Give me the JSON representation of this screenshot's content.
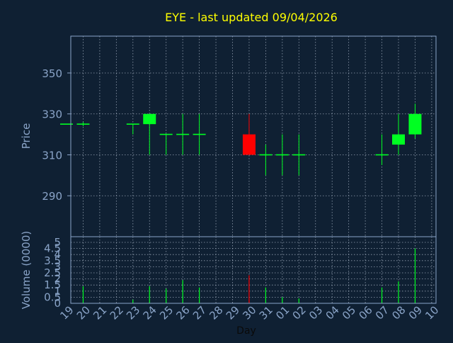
{
  "chart_data": {
    "type": "candlestick",
    "title": "EYE - last updated 09/04/2026",
    "xlabel": "Day",
    "colors": {
      "background": "#0f2033",
      "title": "#ffff00",
      "axis_text": "#8aa4c8",
      "frame": "#8aa4c8",
      "grid": "#c8d4e4",
      "up": "#00ff22",
      "down": "#ff0000",
      "neutral": "#00ff22"
    },
    "x_tick_labels": [
      "19",
      "20",
      "21",
      "22",
      "23",
      "24",
      "25",
      "26",
      "27",
      "28",
      "29",
      "30",
      "31",
      "01",
      "02",
      "03",
      "04",
      "05",
      "06",
      "07",
      "08",
      "09",
      "10"
    ],
    "price_panel": {
      "ylabel": "Price",
      "ylim": [
        270,
        368
      ],
      "yticks": [
        290,
        310,
        330,
        350
      ],
      "candles": [
        {
          "day": "19",
          "open": 325,
          "high": 325,
          "low": 325,
          "close": 325
        },
        {
          "day": "20",
          "open": 325,
          "high": 326,
          "low": 324,
          "close": 325
        },
        {
          "day": "23",
          "open": 325,
          "high": 325,
          "low": 320,
          "close": 325
        },
        {
          "day": "24",
          "open": 325,
          "high": 330,
          "low": 310,
          "close": 330
        },
        {
          "day": "25",
          "open": 320,
          "high": 320,
          "low": 310,
          "close": 320
        },
        {
          "day": "26",
          "open": 320,
          "high": 330,
          "low": 310,
          "close": 320
        },
        {
          "day": "27",
          "open": 320,
          "high": 330,
          "low": 310,
          "close": 320
        },
        {
          "day": "30",
          "open": 320,
          "high": 330,
          "low": 310,
          "close": 310
        },
        {
          "day": "31",
          "open": 310,
          "high": 315,
          "low": 300,
          "close": 310
        },
        {
          "day": "01",
          "open": 310,
          "high": 320,
          "low": 300,
          "close": 310
        },
        {
          "day": "02",
          "open": 310,
          "high": 320,
          "low": 300,
          "close": 310
        },
        {
          "day": "07",
          "open": 310,
          "high": 320,
          "low": 305,
          "close": 310
        },
        {
          "day": "08",
          "open": 315,
          "high": 330,
          "low": 310,
          "close": 320
        },
        {
          "day": "09",
          "open": 320,
          "high": 335,
          "low": 318,
          "close": 330
        }
      ]
    },
    "volume_panel": {
      "ylabel": "Volume (0000)",
      "ylim": [
        0,
        5
      ],
      "yticks": [
        "0",
        "0.5",
        "1",
        "1.5",
        "2",
        "2.5",
        "3",
        "3.5",
        "4",
        "4.5",
        "5"
      ],
      "ytick_values": [
        0,
        0.5,
        1,
        1.5,
        2,
        2.5,
        3,
        3.5,
        4,
        4.5,
        5
      ],
      "bars": [
        {
          "day": "20",
          "value": 1.4,
          "dir": "up"
        },
        {
          "day": "23",
          "value": 0.3,
          "dir": "up"
        },
        {
          "day": "24",
          "value": 1.4,
          "dir": "up"
        },
        {
          "day": "25",
          "value": 1.2,
          "dir": "up"
        },
        {
          "day": "26",
          "value": 1.9,
          "dir": "up"
        },
        {
          "day": "27",
          "value": 1.3,
          "dir": "up"
        },
        {
          "day": "30",
          "value": 2.3,
          "dir": "down"
        },
        {
          "day": "31",
          "value": 1.3,
          "dir": "up"
        },
        {
          "day": "01",
          "value": 0.5,
          "dir": "up"
        },
        {
          "day": "02",
          "value": 0.4,
          "dir": "up"
        },
        {
          "day": "07",
          "value": 1.3,
          "dir": "up"
        },
        {
          "day": "08",
          "value": 1.8,
          "dir": "up"
        },
        {
          "day": "09",
          "value": 4.5,
          "dir": "up"
        }
      ]
    }
  }
}
